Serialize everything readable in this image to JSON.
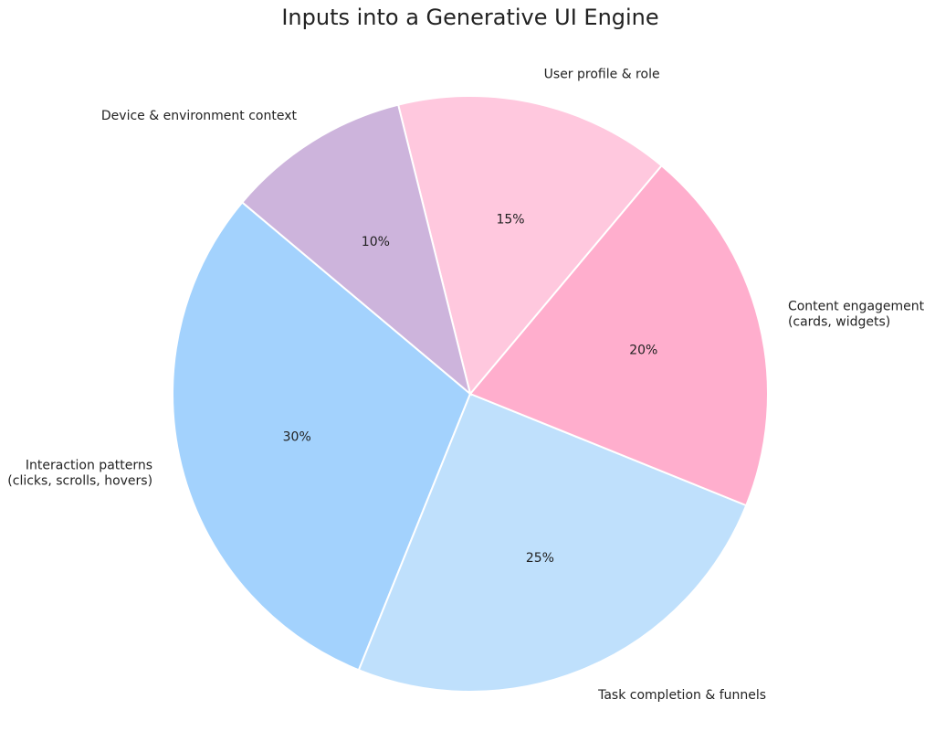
{
  "chart_data": {
    "type": "pie",
    "title": "Inputs into a Generative UI Engine",
    "categories": [
      "Interaction patterns\n(clicks, scrolls, hovers)",
      "Task completion & funnels",
      "Content engagement\n(cards, widgets)",
      "User profile & role",
      "Device & environment context"
    ],
    "values": [
      30,
      25,
      20,
      15,
      10
    ],
    "value_labels": [
      "30%",
      "25%",
      "20%",
      "15%",
      "10%"
    ],
    "colors": [
      "#a3d2fd",
      "#bfe0fc",
      "#ffaecd",
      "#ffc8de",
      "#cdb4dc"
    ],
    "startangle": 140,
    "counterclock": true
  }
}
